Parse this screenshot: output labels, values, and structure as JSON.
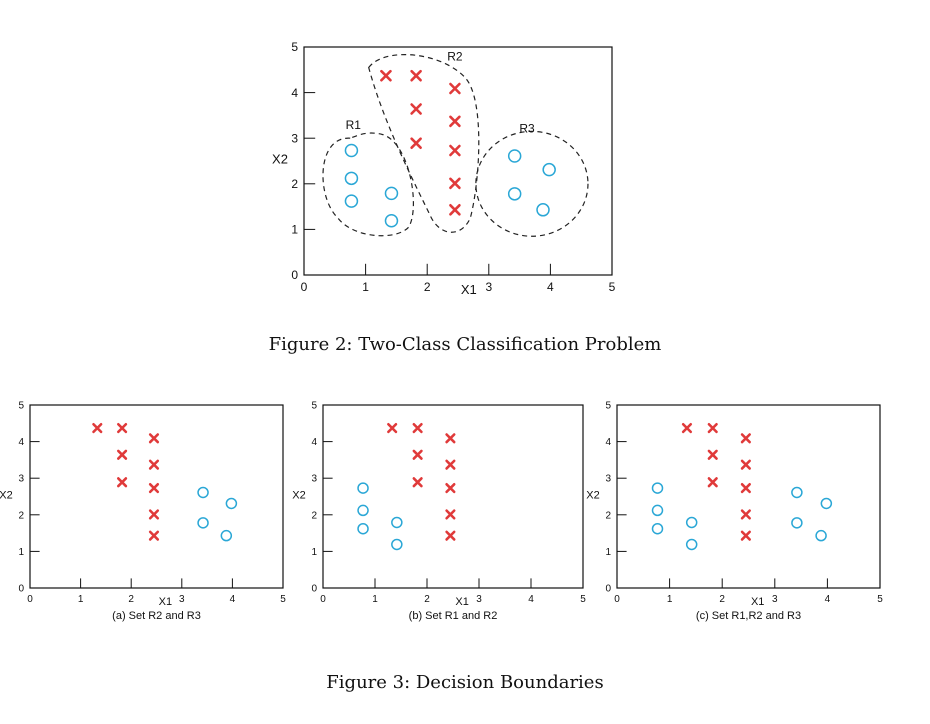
{
  "colors": {
    "cross": "#e03a3a",
    "circle": "#2aa7d6",
    "axis": "#111111",
    "boundary": "#222222"
  },
  "figure2": {
    "caption": "Figure 2: Two-Class Classification Problem"
  },
  "figure3": {
    "caption": "Figure 3: Decision Boundaries"
  },
  "chart_data": [
    {
      "type": "scatter",
      "title": "",
      "xlabel": "X1",
      "ylabel": "X2",
      "xlim": [
        0,
        5
      ],
      "ylim": [
        0,
        5
      ],
      "xticks": [
        "0",
        "1",
        "2",
        "3",
        "4",
        "5"
      ],
      "yticks": [
        "0",
        "1",
        "2",
        "3",
        "4",
        "5"
      ],
      "regions": [
        "R1",
        "R2",
        "R3"
      ],
      "series": [
        {
          "marker": "cross",
          "points": [
            [
              1.33,
              4.37
            ],
            [
              1.82,
              4.37
            ],
            [
              1.82,
              3.64
            ],
            [
              1.82,
              2.89
            ],
            [
              2.45,
              4.09
            ],
            [
              2.45,
              3.37
            ],
            [
              2.45,
              2.73
            ],
            [
              2.45,
              2.01
            ],
            [
              2.45,
              1.43
            ]
          ]
        },
        {
          "marker": "circle",
          "points": [
            [
              0.77,
              2.73
            ],
            [
              0.77,
              2.12
            ],
            [
              0.77,
              1.62
            ],
            [
              1.42,
              1.79
            ],
            [
              1.42,
              1.19
            ],
            [
              3.42,
              2.61
            ],
            [
              3.98,
              2.31
            ],
            [
              3.42,
              1.78
            ],
            [
              3.88,
              1.43
            ]
          ]
        }
      ]
    },
    {
      "type": "scatter",
      "subtitle": "(a) Set R2 and R3",
      "xlabel": "X1",
      "ylabel": "X2",
      "xlim": [
        0,
        5
      ],
      "ylim": [
        0,
        5
      ],
      "xticks": [
        "0",
        "1",
        "2",
        "3",
        "4",
        "5"
      ],
      "yticks": [
        "0",
        "1",
        "2",
        "3",
        "4",
        "5"
      ],
      "series": [
        {
          "marker": "cross",
          "points": [
            [
              1.33,
              4.37
            ],
            [
              1.82,
              4.37
            ],
            [
              1.82,
              3.64
            ],
            [
              1.82,
              2.89
            ],
            [
              2.45,
              4.09
            ],
            [
              2.45,
              3.37
            ],
            [
              2.45,
              2.73
            ],
            [
              2.45,
              2.01
            ],
            [
              2.45,
              1.43
            ]
          ]
        },
        {
          "marker": "circle",
          "points": [
            [
              3.42,
              2.61
            ],
            [
              3.98,
              2.31
            ],
            [
              3.42,
              1.78
            ],
            [
              3.88,
              1.43
            ]
          ]
        }
      ]
    },
    {
      "type": "scatter",
      "subtitle": "(b) Set R1 and R2",
      "xlabel": "X1",
      "ylabel": "X2",
      "xlim": [
        0,
        5
      ],
      "ylim": [
        0,
        5
      ],
      "xticks": [
        "0",
        "1",
        "2",
        "3",
        "4",
        "5"
      ],
      "yticks": [
        "0",
        "1",
        "2",
        "3",
        "4",
        "5"
      ],
      "series": [
        {
          "marker": "cross",
          "points": [
            [
              1.33,
              4.37
            ],
            [
              1.82,
              4.37
            ],
            [
              1.82,
              3.64
            ],
            [
              1.82,
              2.89
            ],
            [
              2.45,
              4.09
            ],
            [
              2.45,
              3.37
            ],
            [
              2.45,
              2.73
            ],
            [
              2.45,
              2.01
            ],
            [
              2.45,
              1.43
            ]
          ]
        },
        {
          "marker": "circle",
          "points": [
            [
              0.77,
              2.73
            ],
            [
              0.77,
              2.12
            ],
            [
              0.77,
              1.62
            ],
            [
              1.42,
              1.79
            ],
            [
              1.42,
              1.19
            ]
          ]
        }
      ]
    },
    {
      "type": "scatter",
      "subtitle": "(c) Set R1,R2 and R3",
      "xlabel": "X1",
      "ylabel": "X2",
      "xlim": [
        0,
        5
      ],
      "ylim": [
        0,
        5
      ],
      "xticks": [
        "0",
        "1",
        "2",
        "3",
        "4",
        "5"
      ],
      "yticks": [
        "0",
        "1",
        "2",
        "3",
        "4",
        "5"
      ],
      "series": [
        {
          "marker": "cross",
          "points": [
            [
              1.33,
              4.37
            ],
            [
              1.82,
              4.37
            ],
            [
              1.82,
              3.64
            ],
            [
              1.82,
              2.89
            ],
            [
              2.45,
              4.09
            ],
            [
              2.45,
              3.37
            ],
            [
              2.45,
              2.73
            ],
            [
              2.45,
              2.01
            ],
            [
              2.45,
              1.43
            ]
          ]
        },
        {
          "marker": "circle",
          "points": [
            [
              0.77,
              2.73
            ],
            [
              0.77,
              2.12
            ],
            [
              0.77,
              1.62
            ],
            [
              1.42,
              1.79
            ],
            [
              1.42,
              1.19
            ],
            [
              3.42,
              2.61
            ],
            [
              3.98,
              2.31
            ],
            [
              3.42,
              1.78
            ],
            [
              3.88,
              1.43
            ]
          ]
        }
      ]
    }
  ]
}
